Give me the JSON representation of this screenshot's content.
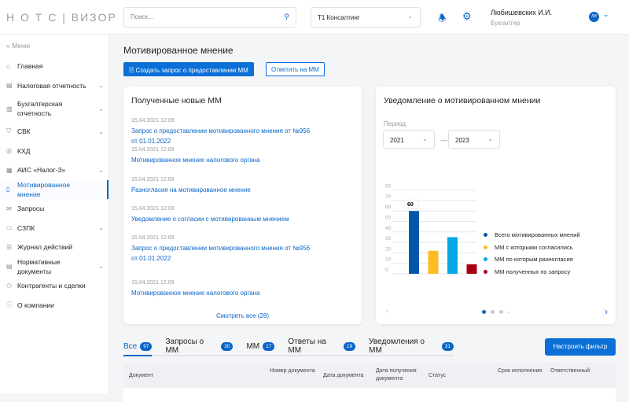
{
  "header": {
    "logo": "Н О Т С | ВИЗОР",
    "search_placeholder": "Поиск...",
    "org": "Т1 Консалтинг",
    "user_name": "Любишевских И.И.",
    "user_role": "Бухгалтер",
    "avatar": "ЛИ"
  },
  "sidebar": {
    "menu_label": "Меню",
    "items": [
      {
        "label": "Главная",
        "icon": "home-icon"
      },
      {
        "label": "Налоговая отчетность",
        "icon": "report-icon",
        "chevron": true
      },
      {
        "label": "Бухгалтерская отчетность",
        "icon": "ledger-icon",
        "chevron": true
      },
      {
        "label": "СВК",
        "icon": "shield-icon",
        "chevron": true
      },
      {
        "label": "КХД",
        "icon": "storage-icon"
      },
      {
        "label": "АИС «Налог-3»",
        "icon": "system-icon",
        "chevron": true
      },
      {
        "label": "Мотивированное мнение",
        "icon": "document-icon",
        "active": true
      },
      {
        "label": "Запросы",
        "icon": "mail-icon"
      },
      {
        "label": "СЗПК",
        "icon": "contract-icon",
        "chevron": true
      },
      {
        "label": "Журнал действий",
        "icon": "journal-icon"
      },
      {
        "label": "Нормативные документы",
        "icon": "book-icon",
        "chevron": true
      },
      {
        "label": "Контрагенты и сделки",
        "icon": "people-icon"
      },
      {
        "label": "О компании",
        "icon": "info-icon"
      }
    ]
  },
  "page": {
    "title": "Мотивированное мнение",
    "create_button": "Создать запрос о предоставлении ММ",
    "reply_button": "Ответить на ММ"
  },
  "received": {
    "title": "Полученные новые ММ",
    "items": [
      {
        "date": "15.04.2021   12:09",
        "text": "Запрос о предоставлении мотивированного мнения от №956 от 01.01.2022"
      },
      {
        "date": "15.04.2021   12:09",
        "text": "Мотивированное мнение налогового органа"
      },
      {
        "date": "15.04.2021   12:09",
        "text": "Разногласия на мотивированное мнение"
      },
      {
        "date": "15.04.2021   12:09",
        "text": "Уведомление о согласии с мотивированным мнением"
      },
      {
        "date": "15.04.2021   12:09",
        "text": "Запрос о предоставлении мотивированного мнения от №956 от 01.01.2022"
      },
      {
        "date": "15.04.2021   12:09",
        "text": "Мотивированное мнение налогового органа"
      }
    ],
    "see_all": "Смотреть все (28)"
  },
  "notice": {
    "title": "Уведомление о мотивированном мнении",
    "period_label": "Период",
    "from": "2021",
    "to": "2023",
    "tooltip": "60"
  },
  "chart_data": {
    "type": "bar",
    "categories": [
      "Всего мотивированных мнений",
      "ММ с которыми согласились",
      "ММ по которым разногласия",
      "ММ полученных по запросу"
    ],
    "values": [
      60,
      22,
      35,
      9
    ],
    "colors": [
      "#0057a8",
      "#fbbd23",
      "#06a8e6",
      "#a60010"
    ],
    "ylim": [
      0,
      80
    ],
    "yticks": [
      "0",
      "10",
      "20",
      "30",
      "40",
      "50",
      "60",
      "70",
      "80"
    ],
    "grid": true,
    "legend": "right"
  },
  "tabs": [
    {
      "label": "Все",
      "count": "97"
    },
    {
      "label": "Запросы о ММ",
      "count": "30"
    },
    {
      "label": "ММ",
      "count": "17"
    },
    {
      "label": "Ответы на ММ",
      "count": "19"
    },
    {
      "label": "Уведомления о ММ",
      "count": "31"
    }
  ],
  "filter_button": "Настроить фильтр",
  "table": {
    "columns": [
      "Документ",
      "Номер документа",
      "Дата документа",
      "Дата получения документа",
      "Статус",
      "Срок исполнения",
      "Ответственный"
    ]
  }
}
